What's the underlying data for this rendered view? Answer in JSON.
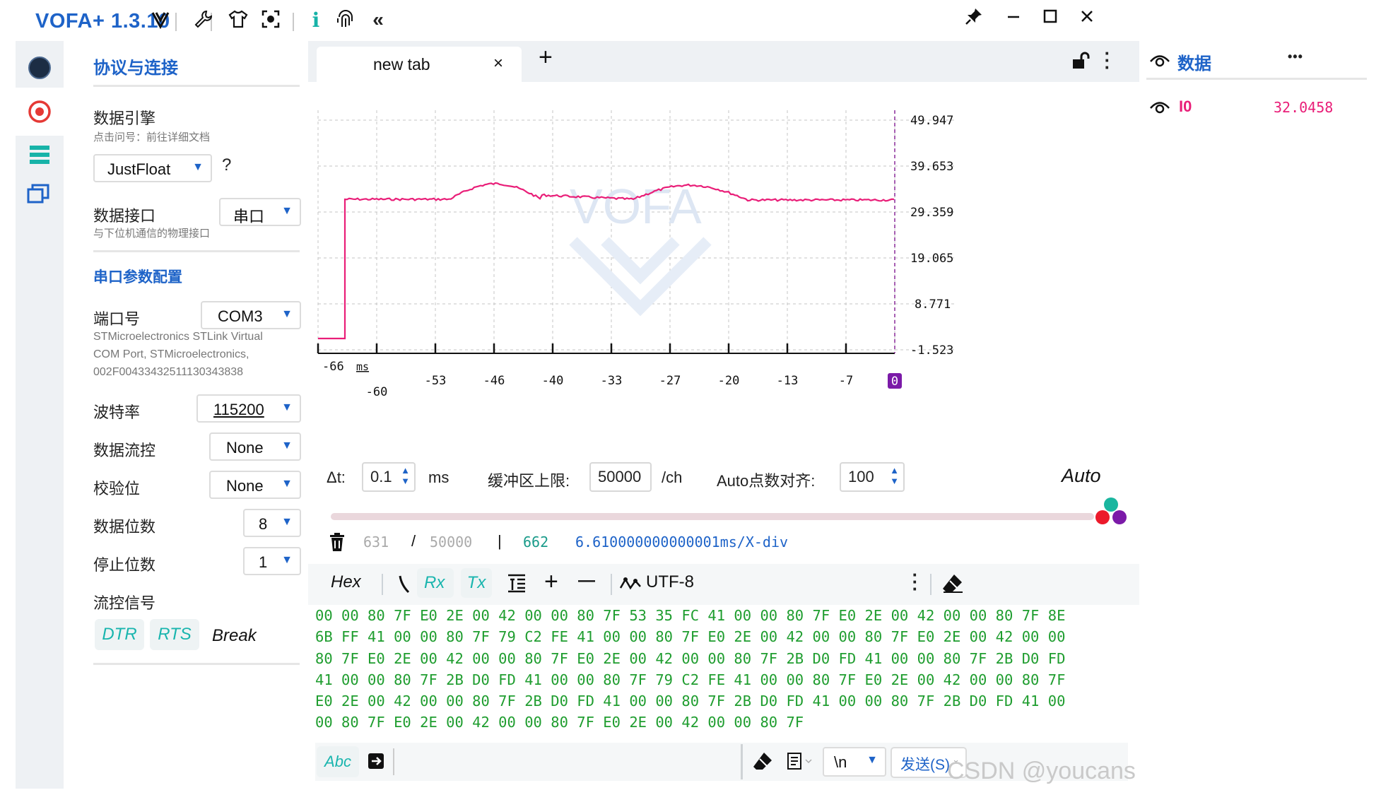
{
  "app": {
    "title": "VOFA+ 1.3.10",
    "toolbar_icons": [
      "vofa-logo-icon",
      "wrench-icon",
      "shirt-icon",
      "screenshot-icon",
      "info-icon",
      "fingerprint-icon",
      "collapse-icon"
    ],
    "window_icons": [
      "pin-icon",
      "minimize-icon",
      "maximize-icon",
      "close-icon"
    ]
  },
  "rail": {
    "items": [
      "connection-icon",
      "record-icon",
      "list-icon",
      "windows-icon"
    ]
  },
  "left_panel": {
    "title": "协议与连接",
    "data_engine": {
      "label": "数据引擎",
      "hint": "点击问号：前往详细文档",
      "value": "JustFloat",
      "help": "?"
    },
    "data_interface": {
      "label": "数据接口",
      "hint": "与下位机通信的物理接口",
      "value": "串口"
    },
    "serial_section": "串口参数配置",
    "port": {
      "label": "端口号",
      "value": "COM3",
      "desc1": "STMicroelectronics STLink Virtual",
      "desc2": "COM Port, STMicroelectronics,",
      "desc3": "002F00433432511130343838"
    },
    "baud": {
      "label": "波特率",
      "value": "115200"
    },
    "flow": {
      "label": "数据流控",
      "value": "None"
    },
    "parity": {
      "label": "校验位",
      "value": "None"
    },
    "data_bits": {
      "label": "数据位数",
      "value": "8"
    },
    "stop_bits": {
      "label": "停止位数",
      "value": "1"
    },
    "flow_signal": {
      "label": "流控信号",
      "dtr": "DTR",
      "rts": "RTS",
      "break": "Break"
    }
  },
  "tab": {
    "label": "new tab",
    "close": "×",
    "add": "+"
  },
  "plot": {
    "y_ticks": [
      "49.947",
      "39.653",
      "29.359",
      "19.065",
      "8.771",
      "-1.523"
    ],
    "x_ticks_top": [
      "-66",
      "-53",
      "-46",
      "-40",
      "-33",
      "-27",
      "-20",
      "-13",
      "-7"
    ],
    "x_ticks_bottom": [
      "-60"
    ],
    "x_unit": "ms",
    "x_zero": "0",
    "watermark": "VOFA"
  },
  "controls": {
    "dt_label": "Δt:",
    "dt_value": "0.1",
    "dt_unit": "ms",
    "buffer_label": "缓冲区上限:",
    "buffer_value": "50000",
    "buffer_unit": "/ch",
    "align_label": "Auto点数对齐:",
    "align_value": "100",
    "auto": "Auto"
  },
  "status": {
    "count": "631",
    "slash": "/",
    "total": "50000",
    "bar": "|",
    "received": "662",
    "xdiv": "6.610000000000001ms/X-div"
  },
  "rx_toolbar": {
    "hex": "Hex",
    "rx": "Rx",
    "tx": "Tx",
    "plus": "+",
    "minus": "—",
    "encoding": "UTF-8"
  },
  "hex_lines": [
    "00 00 80 7F E0 2E 00 42 00 00 80 7F 53 35 FC 41 00 00 80 7F E0 2E 00 42 00 00 80 7F 8E",
    "6B FF 41 00 00 80 7F 79 C2 FE 41 00 00 80 7F E0 2E 00 42 00 00 80 7F E0 2E 00 42 00 00",
    "80 7F E0 2E 00 42 00 00 80 7F E0 2E 00 42 00 00 80 7F 2B D0 FD 41 00 00 80 7F 2B D0 FD",
    "41 00 00 80 7F 2B D0 FD 41 00 00 80 7F 79 C2 FE 41 00 00 80 7F E0 2E 00 42 00 00 80 7F",
    "E0 2E 00 42 00 00 80 7F 2B D0 FD 41 00 00 80 7F 2B D0 FD 41 00 00 80 7F 2B D0 FD 41 00",
    "00 80 7F E0 2E 00 42 00 00 80 7F E0 2E 00 42 00 00 80 7F"
  ],
  "send_bar": {
    "abc": "Abc",
    "newline": "\\n",
    "send": "发送(S)"
  },
  "right_panel": {
    "title": "数据",
    "more": "•••",
    "channels": [
      {
        "name": "I0",
        "value": "32.0458"
      }
    ]
  },
  "watermark": "CSDN @youcans"
}
